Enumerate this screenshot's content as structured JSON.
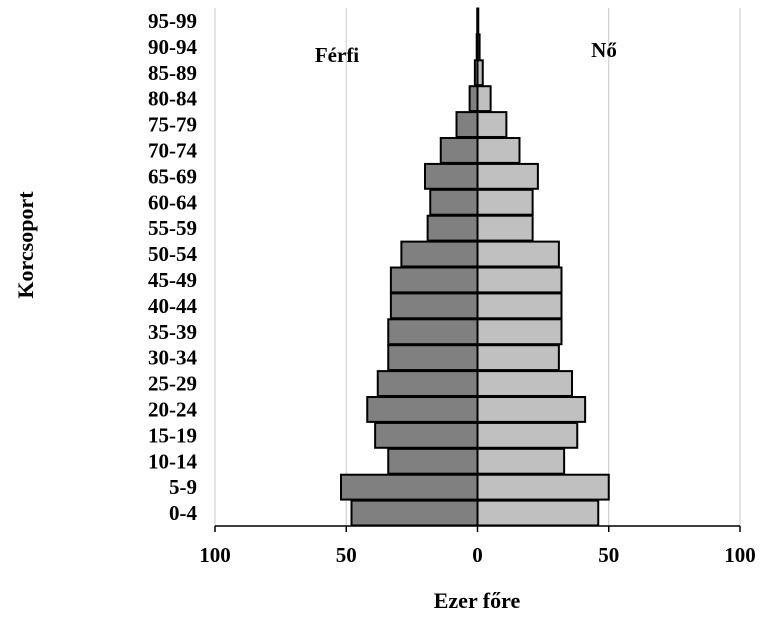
{
  "chart_data": {
    "type": "bar",
    "orientation": "horizontal",
    "subtype": "population-pyramid",
    "categories": [
      "0-4",
      "5-9",
      "10-14",
      "15-19",
      "20-24",
      "25-29",
      "30-34",
      "35-39",
      "40-44",
      "45-49",
      "50-54",
      "55-59",
      "60-64",
      "65-69",
      "70-74",
      "75-79",
      "80-84",
      "85-89",
      "90-94",
      "95-99"
    ],
    "series": [
      {
        "name": "Férfi",
        "side": "left",
        "color": "#808080",
        "values": [
          48,
          52,
          34,
          39,
          42,
          38,
          34,
          34,
          33,
          33,
          29,
          19,
          18,
          20,
          14,
          8,
          3,
          1,
          0.3,
          0.1
        ]
      },
      {
        "name": "Nő",
        "side": "right",
        "color": "#c0c0c0",
        "values": [
          46,
          50,
          33,
          38,
          41,
          36,
          31,
          32,
          32,
          32,
          31,
          21,
          21,
          23,
          16,
          11,
          5,
          2,
          0.8,
          0.3
        ]
      }
    ],
    "xlabel": "Ezer főre",
    "ylabel": "Korcsoport",
    "xlim": [
      -100,
      100
    ],
    "xticks": [
      {
        "value": -100,
        "label": "100"
      },
      {
        "value": -50,
        "label": "50"
      },
      {
        "value": 0,
        "label": "0"
      },
      {
        "value": 50,
        "label": "50"
      },
      {
        "value": 100,
        "label": "100"
      }
    ],
    "grid": "vertical",
    "legend": "inside-top (labels over each half)"
  }
}
